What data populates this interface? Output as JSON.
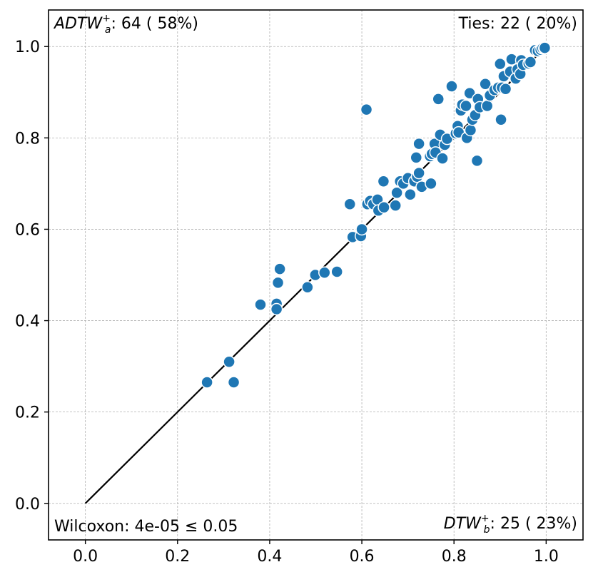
{
  "chart_data": {
    "type": "scatter",
    "xlim": [
      -0.08,
      1.08
    ],
    "ylim": [
      -0.08,
      1.08
    ],
    "xticks": [
      "0.0",
      "0.2",
      "0.4",
      "0.6",
      "0.8",
      "1.0"
    ],
    "yticks": [
      "0.0",
      "0.2",
      "0.4",
      "0.6",
      "0.8",
      "1.0"
    ],
    "grid": true,
    "diagonal": {
      "from": [
        0,
        0
      ],
      "to": [
        1,
        1
      ],
      "color": "#000000"
    },
    "point_color": "#1f77b4",
    "annotations": {
      "top_left": {
        "main": "ADTW",
        "sub": "a",
        "sup": "+",
        "rest": ": 64 ( 58%)"
      },
      "top_right": "Ties: 22 ( 20%)",
      "bottom_left": "Wilcoxon: 4e-05 ≤ 0.05",
      "bottom_right": {
        "main": "DTW",
        "sub": "b",
        "sup": "+",
        "rest": ": 25 ( 23%)"
      }
    },
    "points": [
      [
        0.264,
        0.265
      ],
      [
        0.312,
        0.31
      ],
      [
        0.322,
        0.265
      ],
      [
        0.38,
        0.435
      ],
      [
        0.415,
        0.437
      ],
      [
        0.415,
        0.425
      ],
      [
        0.418,
        0.483
      ],
      [
        0.422,
        0.513
      ],
      [
        0.482,
        0.473
      ],
      [
        0.499,
        0.5
      ],
      [
        0.519,
        0.505
      ],
      [
        0.546,
        0.507
      ],
      [
        0.574,
        0.655
      ],
      [
        0.58,
        0.583
      ],
      [
        0.598,
        0.585
      ],
      [
        0.6,
        0.6
      ],
      [
        0.61,
        0.862
      ],
      [
        0.612,
        0.655
      ],
      [
        0.618,
        0.662
      ],
      [
        0.625,
        0.655
      ],
      [
        0.634,
        0.665
      ],
      [
        0.636,
        0.641
      ],
      [
        0.648,
        0.648
      ],
      [
        0.647,
        0.705
      ],
      [
        0.673,
        0.652
      ],
      [
        0.676,
        0.68
      ],
      [
        0.683,
        0.705
      ],
      [
        0.69,
        0.7
      ],
      [
        0.7,
        0.712
      ],
      [
        0.705,
        0.676
      ],
      [
        0.714,
        0.705
      ],
      [
        0.718,
        0.757
      ],
      [
        0.72,
        0.715
      ],
      [
        0.724,
        0.723
      ],
      [
        0.724,
        0.787
      ],
      [
        0.73,
        0.693
      ],
      [
        0.75,
        0.7
      ],
      [
        0.748,
        0.76
      ],
      [
        0.752,
        0.765
      ],
      [
        0.758,
        0.787
      ],
      [
        0.76,
        0.768
      ],
      [
        0.766,
        0.885
      ],
      [
        0.77,
        0.807
      ],
      [
        0.775,
        0.755
      ],
      [
        0.78,
        0.785
      ],
      [
        0.785,
        0.798
      ],
      [
        0.795,
        0.913
      ],
      [
        0.804,
        0.81
      ],
      [
        0.808,
        0.826
      ],
      [
        0.81,
        0.812
      ],
      [
        0.815,
        0.86
      ],
      [
        0.818,
        0.873
      ],
      [
        0.826,
        0.87
      ],
      [
        0.828,
        0.8
      ],
      [
        0.834,
        0.898
      ],
      [
        0.836,
        0.817
      ],
      [
        0.84,
        0.84
      ],
      [
        0.846,
        0.85
      ],
      [
        0.85,
        0.75
      ],
      [
        0.852,
        0.885
      ],
      [
        0.856,
        0.867
      ],
      [
        0.868,
        0.918
      ],
      [
        0.872,
        0.87
      ],
      [
        0.878,
        0.893
      ],
      [
        0.888,
        0.905
      ],
      [
        0.896,
        0.91
      ],
      [
        0.9,
        0.962
      ],
      [
        0.902,
        0.84
      ],
      [
        0.904,
        0.91
      ],
      [
        0.908,
        0.935
      ],
      [
        0.912,
        0.907
      ],
      [
        0.922,
        0.945
      ],
      [
        0.925,
        0.972
      ],
      [
        0.934,
        0.93
      ],
      [
        0.938,
        0.95
      ],
      [
        0.944,
        0.94
      ],
      [
        0.946,
        0.97
      ],
      [
        0.95,
        0.96
      ],
      [
        0.962,
        0.963
      ],
      [
        0.966,
        0.966
      ],
      [
        0.976,
        0.992
      ],
      [
        0.982,
        0.99
      ],
      [
        0.988,
        0.993
      ],
      [
        0.992,
        0.996
      ],
      [
        0.996,
        0.996
      ],
      [
        0.997,
        0.997
      ]
    ]
  }
}
